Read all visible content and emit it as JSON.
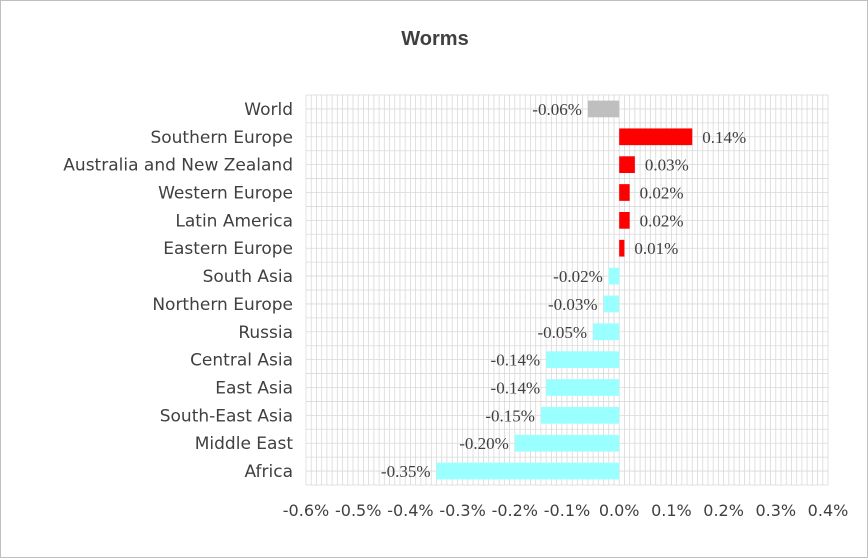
{
  "chart_data": {
    "type": "bar",
    "orientation": "horizontal",
    "title": "Worms",
    "categories": [
      "World",
      "Southern Europe",
      "Australia and New Zealand",
      "Western Europe",
      "Latin America",
      "Eastern Europe",
      "South Asia",
      "Northern Europe",
      "Russia",
      "Central Asia",
      "East Asia",
      "South-East Asia",
      "Middle East",
      "Africa"
    ],
    "values": [
      -0.06,
      0.14,
      0.03,
      0.02,
      0.02,
      0.01,
      -0.02,
      -0.03,
      -0.05,
      -0.14,
      -0.14,
      -0.15,
      -0.2,
      -0.35
    ],
    "data_labels": [
      "-0.06%",
      "0.14%",
      "0.03%",
      "0.02%",
      "0.02%",
      "0.01%",
      "-0.02%",
      "-0.03%",
      "-0.05%",
      "-0.14%",
      "-0.14%",
      "-0.15%",
      "-0.20%",
      "-0.35%"
    ],
    "xlim": [
      -0.6,
      0.4
    ],
    "x_ticks": [
      -0.6,
      -0.5,
      -0.4,
      -0.3,
      -0.2,
      -0.1,
      0.0,
      0.1,
      0.2,
      0.3,
      0.4
    ],
    "x_tick_labels": [
      "-0.6%",
      "-0.5%",
      "-0.4%",
      "-0.3%",
      "-0.2%",
      "-0.1%",
      "0.0%",
      "0.1%",
      "0.2%",
      "0.3%",
      "0.4%"
    ],
    "xlabel": "",
    "ylabel": "",
    "grid": true,
    "legend": "none",
    "colors": {
      "world": "#bfbfbf",
      "positive": "#ff0000",
      "negative": "#99ffff",
      "grid": "#d9d9d9",
      "text": "#404040"
    }
  }
}
